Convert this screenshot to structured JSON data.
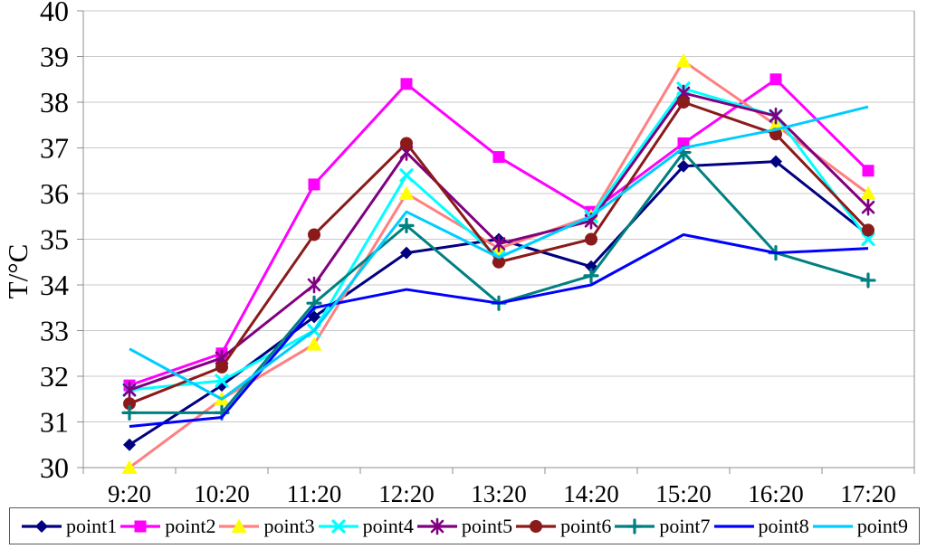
{
  "chart_data": {
    "type": "line",
    "title": "",
    "xlabel": "",
    "ylabel": "T/°C",
    "ylim": [
      30,
      40
    ],
    "ytick_step": 1,
    "grid": true,
    "legend_position": "bottom",
    "categories": [
      "9:20",
      "10:20",
      "11:20",
      "12:20",
      "13:20",
      "14:20",
      "15:20",
      "16:20",
      "17:20"
    ],
    "yticks": [
      "30",
      "31",
      "32",
      "33",
      "34",
      "35",
      "36",
      "37",
      "38",
      "39",
      "40"
    ],
    "series": [
      {
        "name": "point1",
        "color": "#000080",
        "marker": "diamond",
        "marker_color": "#000080",
        "values": [
          30.5,
          31.8,
          33.3,
          34.7,
          35.0,
          34.4,
          36.6,
          36.7,
          35.1
        ]
      },
      {
        "name": "point2",
        "color": "#FF00FF",
        "marker": "square",
        "marker_color": "#FF00FF",
        "values": [
          31.8,
          32.5,
          36.2,
          38.4,
          36.8,
          35.6,
          37.1,
          38.5,
          36.5
        ]
      },
      {
        "name": "point3",
        "color": "#FF8080",
        "marker": "triangle",
        "marker_color": "#FFFF00",
        "values": [
          30.0,
          31.5,
          32.7,
          36.0,
          34.8,
          35.5,
          38.9,
          37.5,
          36.0
        ]
      },
      {
        "name": "point4",
        "color": "#00FFFF",
        "marker": "x",
        "marker_color": "#00FFFF",
        "values": [
          31.7,
          31.9,
          33.0,
          36.4,
          34.6,
          35.5,
          38.3,
          37.7,
          35.0
        ]
      },
      {
        "name": "point5",
        "color": "#800080",
        "marker": "asterisk",
        "marker_color": "#800080",
        "values": [
          31.7,
          32.4,
          34.0,
          36.9,
          34.9,
          35.4,
          38.2,
          37.7,
          35.7
        ]
      },
      {
        "name": "point6",
        "color": "#8B1A1A",
        "marker": "circle",
        "marker_color": "#8B1A1A",
        "values": [
          31.4,
          32.2,
          35.1,
          37.1,
          34.5,
          35.0,
          38.0,
          37.3,
          35.2
        ]
      },
      {
        "name": "point7",
        "color": "#008080",
        "marker": "plus",
        "marker_color": "#008080",
        "values": [
          31.2,
          31.2,
          33.6,
          35.3,
          33.6,
          34.2,
          36.9,
          34.7,
          34.1
        ]
      },
      {
        "name": "point8",
        "color": "#0000FF",
        "marker": "none",
        "marker_color": "#0000FF",
        "values": [
          30.9,
          31.1,
          33.5,
          33.9,
          33.6,
          34.0,
          35.1,
          34.7,
          34.8
        ]
      },
      {
        "name": "point9",
        "color": "#00CCFF",
        "marker": "none",
        "marker_color": "#00CCFF",
        "values": [
          32.6,
          31.5,
          33.0,
          35.6,
          34.6,
          35.5,
          37.0,
          37.4,
          37.9
        ]
      }
    ]
  }
}
